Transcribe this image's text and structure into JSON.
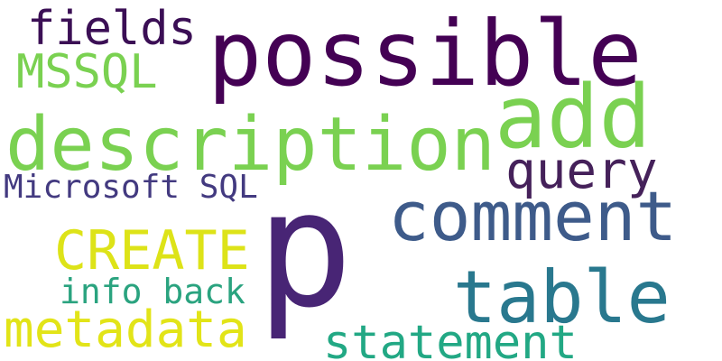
{
  "words": {
    "fields": {
      "text": "fields",
      "color": "#3b0f55"
    },
    "possible": {
      "text": "possible",
      "color": "#440154"
    },
    "mssql": {
      "text": "MSSQL",
      "color": "#7ad151"
    },
    "add": {
      "text": "add",
      "color": "#7ad151"
    },
    "description": {
      "text": "description",
      "color": "#7ad151"
    },
    "query": {
      "text": "query",
      "color": "#45215a"
    },
    "microsoft_sql": {
      "text": "Microsoft SQL",
      "color": "#433a80"
    },
    "comment": {
      "text": "comment",
      "color": "#3e5b8a"
    },
    "p": {
      "text": "p",
      "color": "#482575"
    },
    "create": {
      "text": "CREATE",
      "color": "#dde318"
    },
    "table": {
      "text": "table",
      "color": "#29788e"
    },
    "info_back": {
      "text": "info back",
      "color": "#2aa37f"
    },
    "metadata": {
      "text": "metadata",
      "color": "#e2e418"
    },
    "statement": {
      "text": "statement",
      "color": "#22a884"
    }
  }
}
